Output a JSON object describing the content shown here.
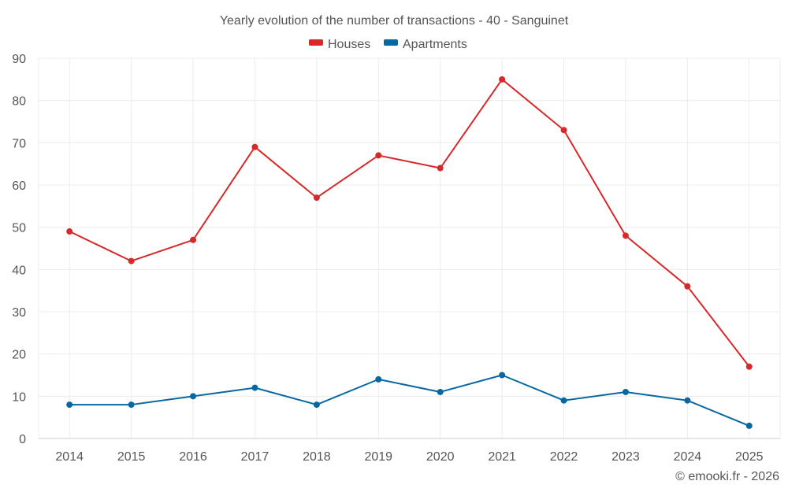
{
  "chart_data": {
    "type": "line",
    "title": "Yearly evolution of the number of transactions - 40 - Sanguinet",
    "categories": [
      "2014",
      "2015",
      "2016",
      "2017",
      "2018",
      "2019",
      "2020",
      "2021",
      "2022",
      "2023",
      "2024",
      "2025"
    ],
    "series": [
      {
        "name": "Houses",
        "color": "#d7282a",
        "values": [
          49,
          42,
          47,
          69,
          57,
          67,
          64,
          85,
          73,
          48,
          36,
          17
        ]
      },
      {
        "name": "Apartments",
        "color": "#0667a1",
        "values": [
          8,
          8,
          10,
          12,
          8,
          14,
          11,
          15,
          9,
          11,
          9,
          3
        ]
      }
    ],
    "ylim": [
      0,
      90
    ],
    "yticks": [
      0,
      10,
      20,
      30,
      40,
      50,
      60,
      70,
      80,
      90
    ],
    "xlabel": "",
    "ylabel": "",
    "grid": true,
    "legend_position": "top-center"
  },
  "copyright": "© emooki.fr - 2026"
}
